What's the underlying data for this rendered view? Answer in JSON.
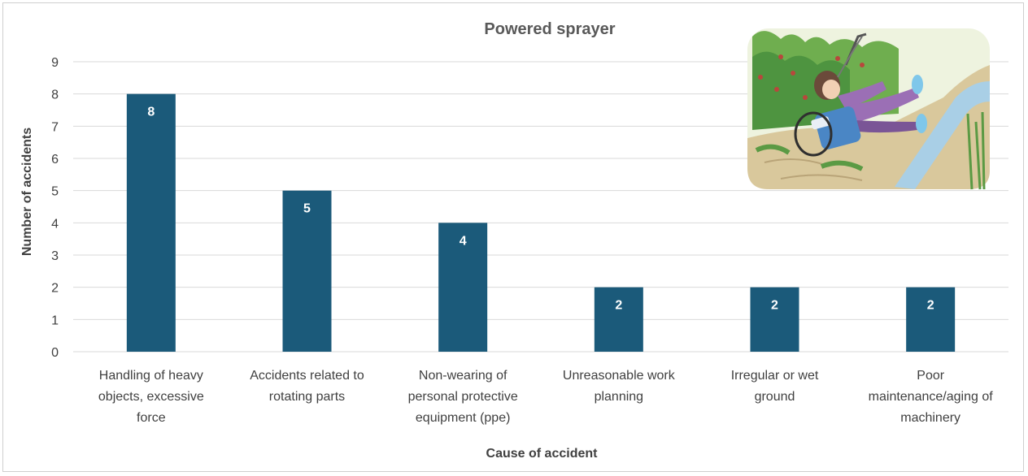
{
  "chart_data": {
    "type": "bar",
    "title": "Powered sprayer",
    "xlabel": "Cause of accident",
    "ylabel": "Number of accidents",
    "categories": [
      [
        "Handling of heavy",
        "objects, excessive",
        "force"
      ],
      [
        "Accidents related to",
        "rotating parts"
      ],
      [
        "Non-wearing of",
        "personal protective",
        "equipment (ppe)"
      ],
      [
        "Unreasonable work",
        "planning"
      ],
      [
        "Irregular or wet",
        "ground"
      ],
      [
        "Poor",
        "maintenance/aging of",
        "machinery"
      ]
    ],
    "values": [
      8,
      5,
      4,
      2,
      2,
      2
    ],
    "data_labels": [
      "8",
      "5",
      "4",
      "2",
      "2",
      "2"
    ],
    "yticks": [
      "0",
      "1",
      "2",
      "3",
      "4",
      "5",
      "6",
      "7",
      "8",
      "9"
    ],
    "ylim": [
      0,
      9
    ],
    "grid": true,
    "legend": "none",
    "colors": {
      "bar": "#1b5a7a",
      "grid": "#d9d9d9",
      "text": "#404040"
    }
  },
  "illustration": {
    "icon": "farmer-falling-with-backpack-sprayer-illustration"
  }
}
